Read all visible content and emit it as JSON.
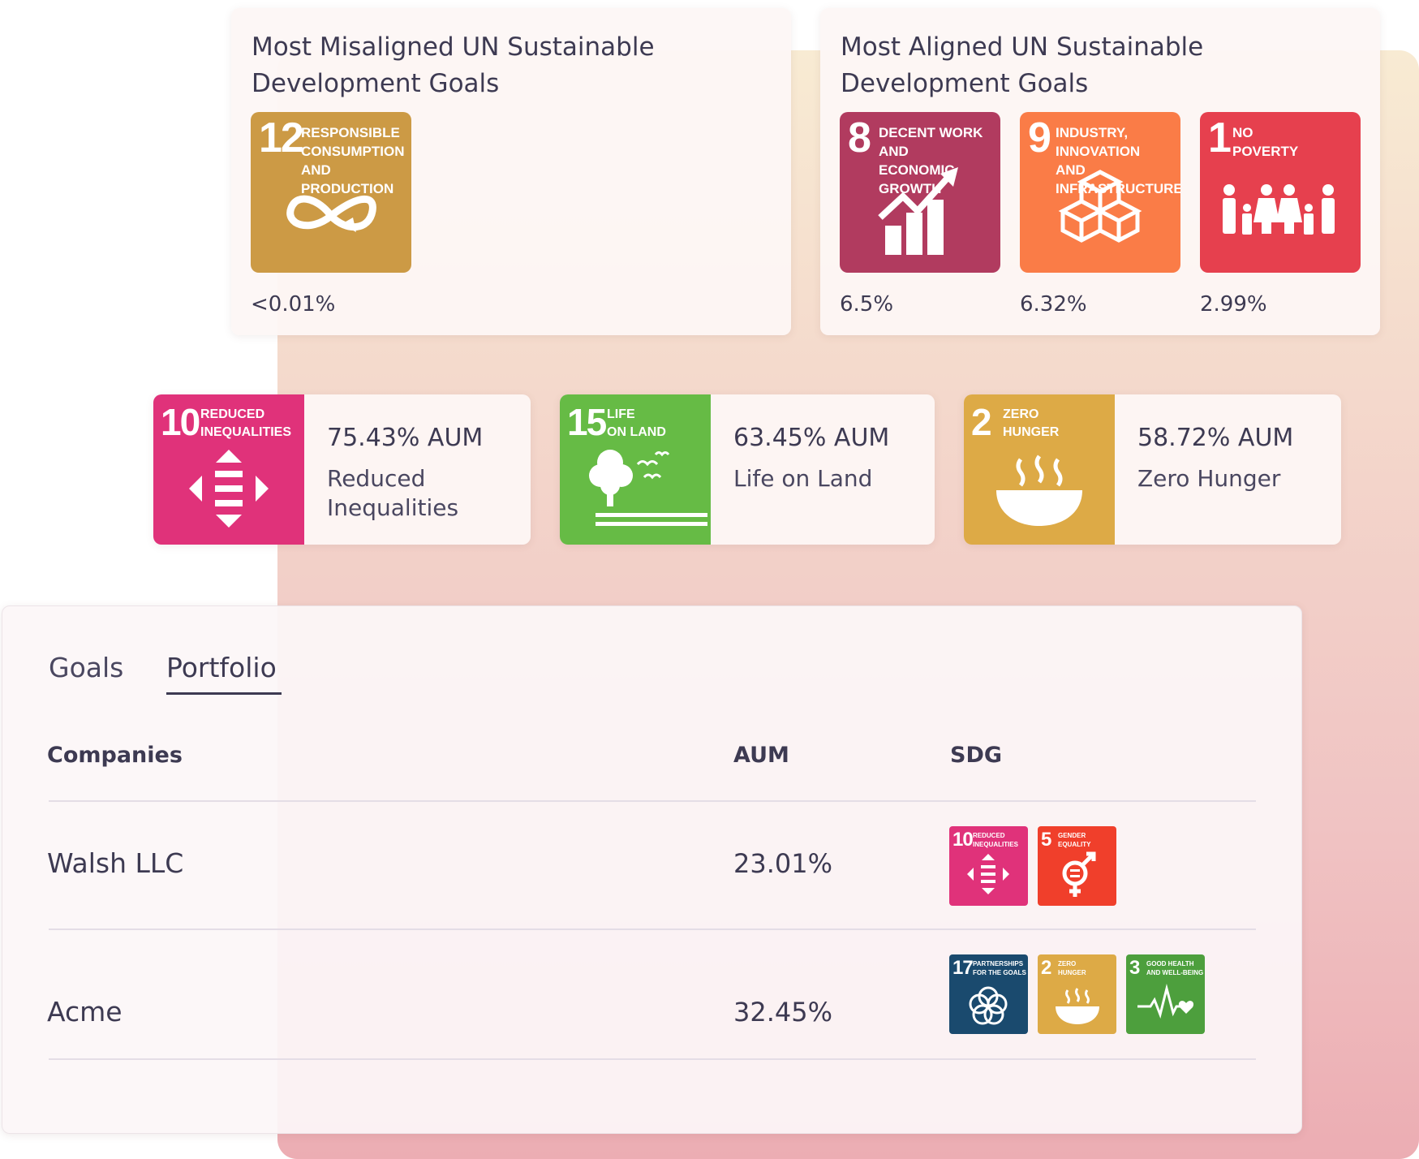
{
  "misaligned": {
    "title": "Most Misaligned UN Sustainable Development Goals",
    "goals": [
      {
        "number": "12",
        "label": "RESPONSIBLE\nCONSUMPTION\nAND PRODUCTION",
        "icon": "infinity-icon",
        "color": "#cc9a45",
        "percent": "<0.01%"
      }
    ]
  },
  "aligned": {
    "title": "Most Aligned UN Sustainable Development Goals",
    "goals": [
      {
        "number": "8",
        "label": "DECENT WORK AND\nECONOMIC GROWTH",
        "icon": "growth-chart-icon",
        "color": "#b13b5f",
        "percent": "6.5%"
      },
      {
        "number": "9",
        "label": "INDUSTRY, INNOVATION\nAND INFRASTRUCTURE",
        "icon": "cubes-icon",
        "color": "#fa7c47",
        "percent": "6.32%"
      },
      {
        "number": "1",
        "label": "NO\nPOVERTY",
        "icon": "family-icon",
        "color": "#e6404e",
        "percent": "2.99%"
      }
    ]
  },
  "stats": [
    {
      "number": "10",
      "label": "REDUCED\nINEQUALITIES",
      "icon": "equality-arrows-icon",
      "color": "#e0327a",
      "aum": "75.43% AUM",
      "name": "Reduced Inequalities"
    },
    {
      "number": "15",
      "label": "LIFE\nON LAND",
      "icon": "tree-icon",
      "color": "#66bb45",
      "aum": "63.45% AUM",
      "name": "Life on Land"
    },
    {
      "number": "2",
      "label": "ZERO\nHUNGER",
      "icon": "bowl-icon",
      "color": "#ddaa46",
      "aum": "58.72% AUM",
      "name": "Zero Hunger"
    }
  ],
  "portfolio": {
    "tabs": [
      "Goals",
      "Portfolio"
    ],
    "active_tab": "Portfolio",
    "columns": [
      "Companies",
      "AUM",
      "SDG"
    ],
    "rows": [
      {
        "company": "Walsh LLC",
        "aum": "23.01%",
        "sdgs": [
          {
            "number": "10",
            "label": "REDUCED\nINEQUALITIES",
            "icon": "equality-arrows-icon",
            "color": "#e0327a"
          },
          {
            "number": "5",
            "label": "GENDER\nEQUALITY",
            "icon": "gender-icon",
            "color": "#f03f2b"
          }
        ]
      },
      {
        "company": "Acme",
        "aum": "32.45%",
        "sdgs": [
          {
            "number": "17",
            "label": "PARTNERSHIPS\nFOR THE GOALS",
            "icon": "flower-rings-icon",
            "color": "#1a4a6e"
          },
          {
            "number": "2",
            "label": "ZERO\nHUNGER",
            "icon": "bowl-icon",
            "color": "#ddaa46"
          },
          {
            "number": "3",
            "label": "GOOD HEALTH\nAND WELL-BEING",
            "icon": "heartbeat-icon",
            "color": "#4d9f3d"
          }
        ]
      }
    ]
  }
}
